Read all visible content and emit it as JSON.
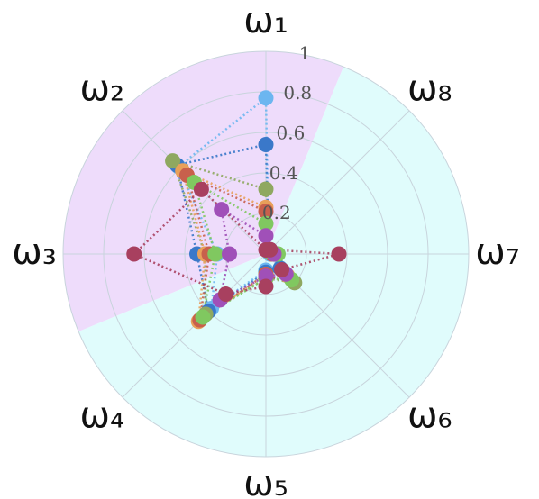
{
  "chart_data": {
    "type": "radar",
    "categories": [
      "ω₁",
      "ω₂",
      "ω₃",
      "ω₄",
      "ω₅",
      "ω₆",
      "ω₇",
      "ω₈"
    ],
    "rlim": [
      0,
      1
    ],
    "rticks": [
      0.2,
      0.4,
      0.6,
      0.8,
      1
    ],
    "grid": true,
    "series": [
      {
        "color": "#6cb6f0",
        "values": [
          0.77,
          0.61,
          0.24,
          0.38,
          0.08,
          0.13,
          0.02,
          0.02
        ]
      },
      {
        "color": "#3a78c9",
        "values": [
          0.54,
          0.62,
          0.34,
          0.4,
          0.09,
          0.1,
          0.03,
          0.02
        ]
      },
      {
        "color": "#8fa860",
        "values": [
          0.32,
          0.65,
          0.3,
          0.42,
          0.12,
          0.2,
          0.04,
          0.02
        ]
      },
      {
        "color": "#e8a05a",
        "values": [
          0.23,
          0.58,
          0.3,
          0.47,
          0.1,
          0.15,
          0.05,
          0.02
        ]
      },
      {
        "color": "#c8604c",
        "values": [
          0.21,
          0.55,
          0.28,
          0.46,
          0.1,
          0.12,
          0.03,
          0.02
        ]
      },
      {
        "color": "#80c860",
        "values": [
          0.15,
          0.5,
          0.25,
          0.44,
          0.12,
          0.18,
          0.06,
          0.02
        ]
      },
      {
        "color": "#a050b8",
        "values": [
          0.09,
          0.31,
          0.18,
          0.32,
          0.11,
          0.14,
          0.04,
          0.03
        ]
      },
      {
        "color": "#a8405f",
        "values": [
          0.02,
          0.45,
          0.65,
          0.28,
          0.16,
          0.11,
          0.36,
          0.03
        ]
      }
    ]
  }
}
